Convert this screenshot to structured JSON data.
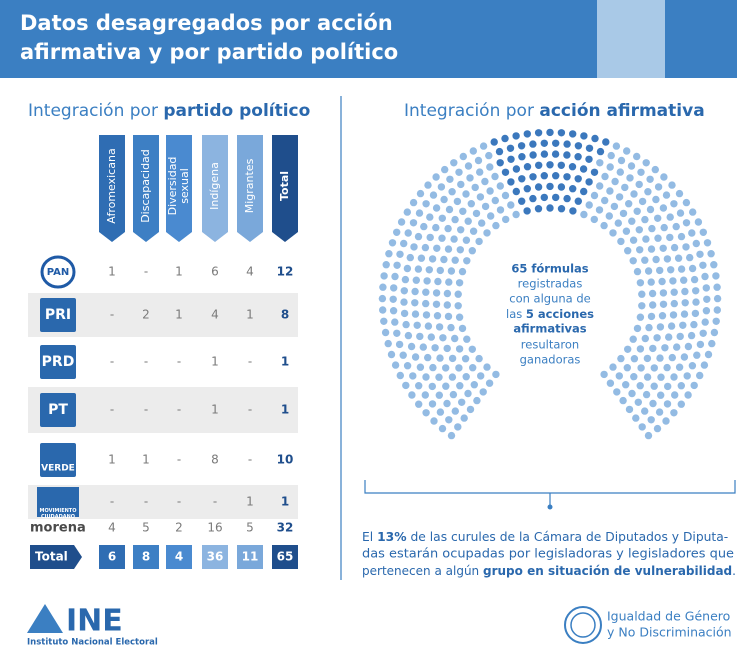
{
  "header": {
    "title_lines": [
      "Datos desagregados por acción",
      "afirmativa y por partido político"
    ]
  },
  "left": {
    "title": {
      "normal": "Integración por",
      "bold": "partido político"
    }
  },
  "table": {
    "columns": [
      "Afromexicana",
      "Discapacidad",
      "Diversidad sexual",
      "Indígena",
      "Migrantes",
      "Total"
    ],
    "rows": [
      {
        "label": "PAN",
        "cells": [
          1,
          "-",
          1,
          6,
          4,
          12
        ]
      },
      {
        "label": "PRI",
        "cells": [
          "-",
          2,
          1,
          4,
          1,
          8
        ]
      },
      {
        "label": "PRD",
        "cells": [
          "-",
          "-",
          "-",
          1,
          "-",
          1
        ]
      },
      {
        "label": "PT",
        "cells": [
          "-",
          "-",
          "-",
          1,
          "-",
          1
        ]
      },
      {
        "label": "VERDE",
        "cells": [
          1,
          1,
          "-",
          8,
          "-",
          10
        ]
      },
      {
        "label": "MOVIMIENTO CIUDADANO",
        "cells": [
          "-",
          "-",
          "-",
          "-",
          1,
          1
        ]
      },
      {
        "label": "morena",
        "cells": [
          4,
          5,
          2,
          16,
          5,
          32
        ]
      }
    ],
    "total": {
      "label": "Total",
      "cells": [
        6,
        8,
        4,
        36,
        11,
        65
      ]
    }
  },
  "right": {
    "title": {
      "normal": "Integración por",
      "bold": "acción afirmativa"
    },
    "center_text": {
      "l1": "65 fórmulas",
      "l2": "registradas",
      "l3": "con alguna de",
      "l4a": "las",
      "l4b": "5 acciones",
      "l5": "afirmativas",
      "l6": "resultaron",
      "l7": "ganadoras"
    },
    "footer": {
      "a": "El",
      "b": "13%",
      "c": "de las curules de la Cámara de Diputados y Diputa-",
      "d": "das estarán ocupadas por legisladoras y legisladores que",
      "e": "pertenecen a algún",
      "f": "grupo en situación de vulnerabilidad",
      "g": "."
    }
  },
  "logos": {
    "ine": "INE",
    "ine_name": "Instituto Nacional Electoral",
    "igualdad_1": "Igualdad de Género",
    "igualdad_2": "y No Discriminación"
  }
}
